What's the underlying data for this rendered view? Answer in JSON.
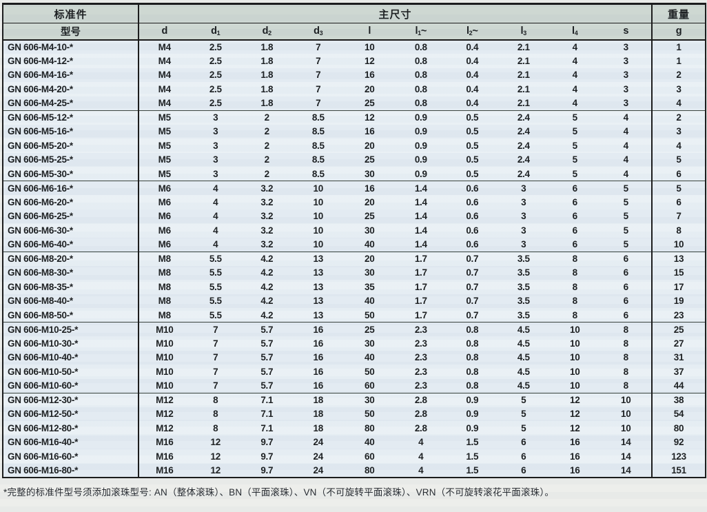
{
  "colors": {
    "header_bg": "#ccd6d0",
    "row_bg": "#e2eaf1",
    "row_bg_alt": "#e9f0f5",
    "border": "#141414",
    "page_bg": "#ecedea"
  },
  "page": {
    "footnote": "*完整的标准件型号须添加滚珠型号: AN（整体滚珠）、BN（平面滚珠）、VN（不可旋转平面滚珠）、VRN（不可旋转滚花平面滚珠）。"
  },
  "table": {
    "header": {
      "standard_part": "标准件",
      "model": "型号",
      "main_dimensions": "主尺寸",
      "weight": "重量",
      "weight_unit": "g",
      "dim_columns": [
        {
          "base": "d"
        },
        {
          "base": "d",
          "sub": "1"
        },
        {
          "base": "d",
          "sub": "2"
        },
        {
          "base": "d",
          "sub": "3"
        },
        {
          "base": "l"
        },
        {
          "base": "l",
          "sub": "1",
          "suffix": "~"
        },
        {
          "base": "l",
          "sub": "2",
          "suffix": "~"
        },
        {
          "base": "l",
          "sub": "3"
        },
        {
          "base": "l",
          "sub": "4"
        },
        {
          "base": "s"
        }
      ]
    },
    "groups": [
      {
        "rows": [
          {
            "model": "GN 606-M4-10-*",
            "dims": [
              "M4",
              "2.5",
              "1.8",
              "7",
              "10",
              "0.8",
              "0.4",
              "2.1",
              "4",
              "3"
            ],
            "weight": "1"
          },
          {
            "model": "GN 606-M4-12-*",
            "dims": [
              "M4",
              "2.5",
              "1.8",
              "7",
              "12",
              "0.8",
              "0.4",
              "2.1",
              "4",
              "3"
            ],
            "weight": "1"
          },
          {
            "model": "GN 606-M4-16-*",
            "dims": [
              "M4",
              "2.5",
              "1.8",
              "7",
              "16",
              "0.8",
              "0.4",
              "2.1",
              "4",
              "3"
            ],
            "weight": "2"
          },
          {
            "model": "GN 606-M4-20-*",
            "dims": [
              "M4",
              "2.5",
              "1.8",
              "7",
              "20",
              "0.8",
              "0.4",
              "2.1",
              "4",
              "3"
            ],
            "weight": "3"
          },
          {
            "model": "GN 606-M4-25-*",
            "dims": [
              "M4",
              "2.5",
              "1.8",
              "7",
              "25",
              "0.8",
              "0.4",
              "2.1",
              "4",
              "3"
            ],
            "weight": "4"
          }
        ]
      },
      {
        "rows": [
          {
            "model": "GN 606-M5-12-*",
            "dims": [
              "M5",
              "3",
              "2",
              "8.5",
              "12",
              "0.9",
              "0.5",
              "2.4",
              "5",
              "4"
            ],
            "weight": "2"
          },
          {
            "model": "GN 606-M5-16-*",
            "dims": [
              "M5",
              "3",
              "2",
              "8.5",
              "16",
              "0.9",
              "0.5",
              "2.4",
              "5",
              "4"
            ],
            "weight": "3"
          },
          {
            "model": "GN 606-M5-20-*",
            "dims": [
              "M5",
              "3",
              "2",
              "8.5",
              "20",
              "0.9",
              "0.5",
              "2.4",
              "5",
              "4"
            ],
            "weight": "4"
          },
          {
            "model": "GN 606-M5-25-*",
            "dims": [
              "M5",
              "3",
              "2",
              "8.5",
              "25",
              "0.9",
              "0.5",
              "2.4",
              "5",
              "4"
            ],
            "weight": "5"
          },
          {
            "model": "GN 606-M5-30-*",
            "dims": [
              "M5",
              "3",
              "2",
              "8.5",
              "30",
              "0.9",
              "0.5",
              "2.4",
              "5",
              "4"
            ],
            "weight": "6"
          }
        ]
      },
      {
        "rows": [
          {
            "model": "GN 606-M6-16-*",
            "dims": [
              "M6",
              "4",
              "3.2",
              "10",
              "16",
              "1.4",
              "0.6",
              "3",
              "6",
              "5"
            ],
            "weight": "5"
          },
          {
            "model": "GN 606-M6-20-*",
            "dims": [
              "M6",
              "4",
              "3.2",
              "10",
              "20",
              "1.4",
              "0.6",
              "3",
              "6",
              "5"
            ],
            "weight": "6"
          },
          {
            "model": "GN 606-M6-25-*",
            "dims": [
              "M6",
              "4",
              "3.2",
              "10",
              "25",
              "1.4",
              "0.6",
              "3",
              "6",
              "5"
            ],
            "weight": "7"
          },
          {
            "model": "GN 606-M6-30-*",
            "dims": [
              "M6",
              "4",
              "3.2",
              "10",
              "30",
              "1.4",
              "0.6",
              "3",
              "6",
              "5"
            ],
            "weight": "8"
          },
          {
            "model": "GN 606-M6-40-*",
            "dims": [
              "M6",
              "4",
              "3.2",
              "10",
              "40",
              "1.4",
              "0.6",
              "3",
              "6",
              "5"
            ],
            "weight": "10"
          }
        ]
      },
      {
        "rows": [
          {
            "model": "GN 606-M8-20-*",
            "dims": [
              "M8",
              "5.5",
              "4.2",
              "13",
              "20",
              "1.7",
              "0.7",
              "3.5",
              "8",
              "6"
            ],
            "weight": "13"
          },
          {
            "model": "GN 606-M8-30-*",
            "dims": [
              "M8",
              "5.5",
              "4.2",
              "13",
              "30",
              "1.7",
              "0.7",
              "3.5",
              "8",
              "6"
            ],
            "weight": "15"
          },
          {
            "model": "GN 606-M8-35-*",
            "dims": [
              "M8",
              "5.5",
              "4.2",
              "13",
              "35",
              "1.7",
              "0.7",
              "3.5",
              "8",
              "6"
            ],
            "weight": "17"
          },
          {
            "model": "GN 606-M8-40-*",
            "dims": [
              "M8",
              "5.5",
              "4.2",
              "13",
              "40",
              "1.7",
              "0.7",
              "3.5",
              "8",
              "6"
            ],
            "weight": "19"
          },
          {
            "model": "GN 606-M8-50-*",
            "dims": [
              "M8",
              "5.5",
              "4.2",
              "13",
              "50",
              "1.7",
              "0.7",
              "3.5",
              "8",
              "6"
            ],
            "weight": "23"
          }
        ]
      },
      {
        "rows": [
          {
            "model": "GN 606-M10-25-*",
            "dims": [
              "M10",
              "7",
              "5.7",
              "16",
              "25",
              "2.3",
              "0.8",
              "4.5",
              "10",
              "8"
            ],
            "weight": "25"
          },
          {
            "model": "GN 606-M10-30-*",
            "dims": [
              "M10",
              "7",
              "5.7",
              "16",
              "30",
              "2.3",
              "0.8",
              "4.5",
              "10",
              "8"
            ],
            "weight": "27"
          },
          {
            "model": "GN 606-M10-40-*",
            "dims": [
              "M10",
              "7",
              "5.7",
              "16",
              "40",
              "2.3",
              "0.8",
              "4.5",
              "10",
              "8"
            ],
            "weight": "31"
          },
          {
            "model": "GN 606-M10-50-*",
            "dims": [
              "M10",
              "7",
              "5.7",
              "16",
              "50",
              "2.3",
              "0.8",
              "4.5",
              "10",
              "8"
            ],
            "weight": "37"
          },
          {
            "model": "GN 606-M10-60-*",
            "dims": [
              "M10",
              "7",
              "5.7",
              "16",
              "60",
              "2.3",
              "0.8",
              "4.5",
              "10",
              "8"
            ],
            "weight": "44"
          }
        ]
      },
      {
        "rows": [
          {
            "model": "GN 606-M12-30-*",
            "dims": [
              "M12",
              "8",
              "7.1",
              "18",
              "30",
              "2.8",
              "0.9",
              "5",
              "12",
              "10"
            ],
            "weight": "38"
          },
          {
            "model": "GN 606-M12-50-*",
            "dims": [
              "M12",
              "8",
              "7.1",
              "18",
              "50",
              "2.8",
              "0.9",
              "5",
              "12",
              "10"
            ],
            "weight": "54"
          },
          {
            "model": "GN 606-M12-80-*",
            "dims": [
              "M12",
              "8",
              "7.1",
              "18",
              "80",
              "2.8",
              "0.9",
              "5",
              "12",
              "10"
            ],
            "weight": "80"
          },
          {
            "model": "GN 606-M16-40-*",
            "dims": [
              "M16",
              "12",
              "9.7",
              "24",
              "40",
              "4",
              "1.5",
              "6",
              "16",
              "14"
            ],
            "weight": "92"
          },
          {
            "model": "GN 606-M16-60-*",
            "dims": [
              "M16",
              "12",
              "9.7",
              "24",
              "60",
              "4",
              "1.5",
              "6",
              "16",
              "14"
            ],
            "weight": "123"
          },
          {
            "model": "GN 606-M16-80-*",
            "dims": [
              "M16",
              "12",
              "9.7",
              "24",
              "80",
              "4",
              "1.5",
              "6",
              "16",
              "14"
            ],
            "weight": "151"
          }
        ]
      }
    ]
  }
}
